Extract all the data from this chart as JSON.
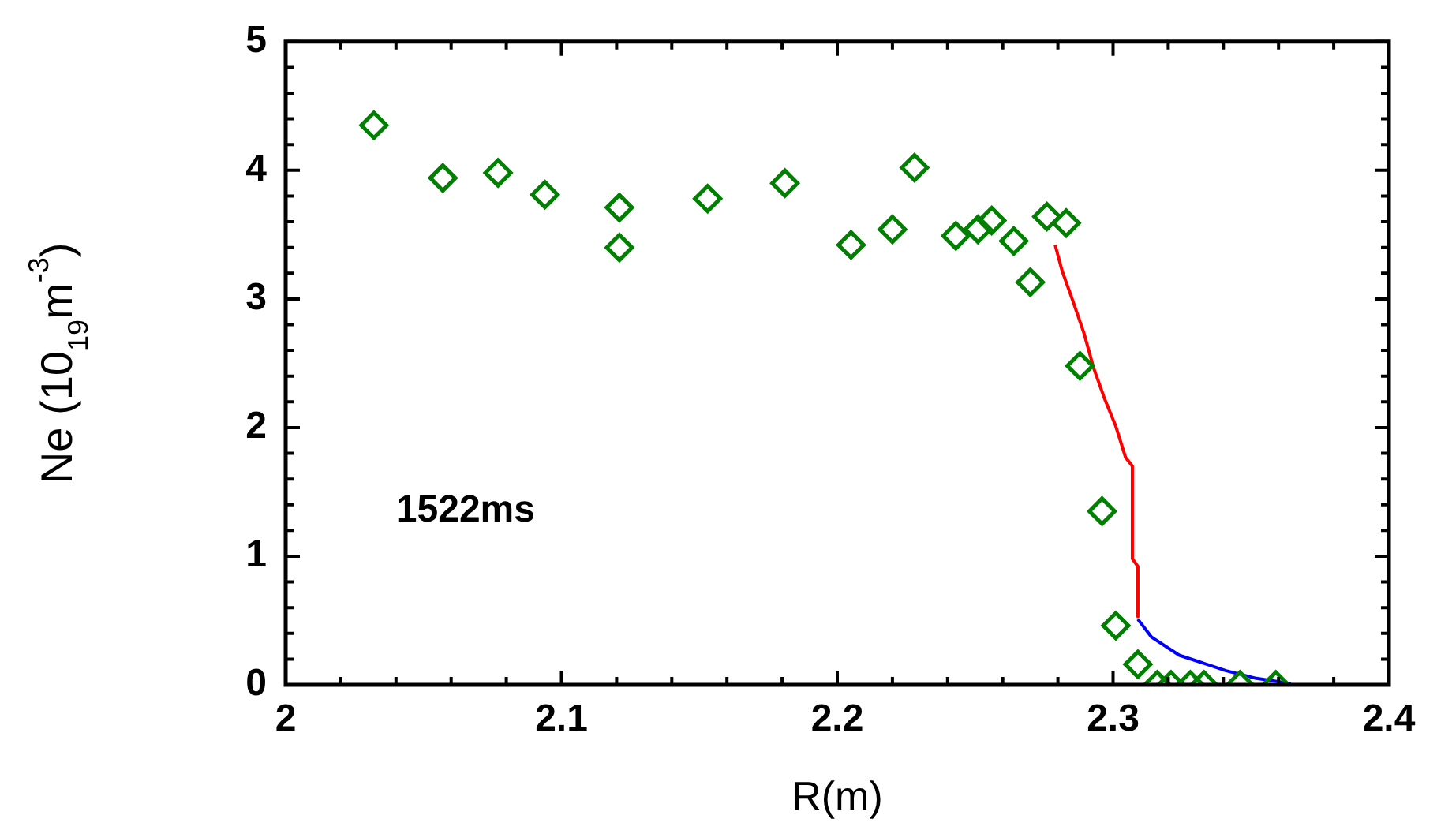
{
  "chart_data": {
    "type": "scatter",
    "xlabel": "R(m)",
    "ylabel": "Ne (10$_{19}$m$^{-3}$)",
    "annotations": [
      "1522ms"
    ],
    "xlim": [
      2,
      2.4
    ],
    "ylim": [
      0,
      5
    ],
    "xticks": [
      2,
      {
        "value": 2.02,
        "label": null
      },
      {
        "value": 2.04,
        "label": null
      },
      {
        "value": 2.06,
        "label": null
      },
      {
        "value": 2.08,
        "label": null
      },
      2.1,
      {
        "value": 2.12,
        "label": null
      },
      {
        "value": 2.14,
        "label": null
      },
      {
        "value": 2.16,
        "label": null
      },
      {
        "value": 2.18,
        "label": null
      },
      2.2,
      {
        "value": 2.22,
        "label": null
      },
      {
        "value": 2.24,
        "label": null
      },
      {
        "value": 2.26,
        "label": null
      },
      {
        "value": 2.28,
        "label": null
      },
      2.3,
      {
        "value": 2.32,
        "label": null
      },
      {
        "value": 2.34,
        "label": null
      },
      {
        "value": 2.36,
        "label": null
      },
      {
        "value": 2.38,
        "label": null
      },
      2.4
    ],
    "yticks": [
      0,
      {
        "value": 0.2,
        "label": null
      },
      {
        "value": 0.4,
        "label": null
      },
      {
        "value": 0.6,
        "label": null
      },
      {
        "value": 0.8,
        "label": null
      },
      1,
      {
        "value": 1.2,
        "label": null
      },
      {
        "value": 1.4,
        "label": null
      },
      {
        "value": 1.6,
        "label": null
      },
      {
        "value": 1.8,
        "label": null
      },
      2,
      {
        "value": 2.2,
        "label": null
      },
      {
        "value": 2.4,
        "label": null
      },
      {
        "value": 2.6,
        "label": null
      },
      {
        "value": 2.8,
        "label": null
      },
      3,
      {
        "value": 3.2,
        "label": null
      },
      {
        "value": 3.4,
        "label": null
      },
      {
        "value": 3.6,
        "label": null
      },
      {
        "value": 3.8,
        "label": null
      },
      4,
      {
        "value": 4.2,
        "label": null
      },
      {
        "value": 4.4,
        "label": null
      },
      {
        "value": 4.6,
        "label": null
      },
      {
        "value": 4.8,
        "label": null
      },
      5
    ],
    "grid": false,
    "legend": false,
    "marker": "diamond",
    "series": [
      {
        "color": "#008000",
        "x": [
          2.032,
          2.057,
          2.077,
          2.094,
          2.121,
          2.121,
          2.153,
          2.181,
          2.205,
          2.22,
          2.228,
          2.243,
          2.251,
          2.256,
          2.264,
          2.27,
          2.276,
          2.283,
          2.288,
          2.296,
          2.301,
          2.309,
          2.316,
          2.321,
          2.328,
          2.333,
          2.346,
          2.359
        ],
        "values": [
          4.35,
          3.94,
          3.98,
          3.81,
          3.71,
          3.4,
          3.78,
          3.9,
          3.42,
          3.54,
          4.02,
          3.49,
          3.54,
          3.61,
          3.45,
          3.13,
          3.64,
          3.59,
          2.48,
          1.35,
          0.46,
          0.16,
          0,
          0,
          0,
          0,
          0,
          0
        ]
      },
      {
        "type": "line",
        "color": "#ff0000",
        "marker": "none",
        "line_style": "solid",
        "x": [
          2.279,
          2.2815,
          2.2855,
          2.2895,
          2.293,
          2.297,
          2.301,
          2.3045,
          2.307,
          2.307,
          2.309,
          2.309
        ],
        "values": [
          3.42,
          3.22,
          2.98,
          2.73,
          2.46,
          2.22,
          2.01,
          1.77,
          1.7,
          0.98,
          0.92,
          0.53
        ]
      },
      {
        "type": "line",
        "color": "#0000ff",
        "marker": "none",
        "line_style": "solid",
        "x": [
          2.309,
          2.314,
          2.324,
          2.341,
          2.352,
          2.3645
        ],
        "values": [
          0.51,
          0.37,
          0.23,
          0.11,
          0.05,
          0.01
        ]
      }
    ]
  }
}
